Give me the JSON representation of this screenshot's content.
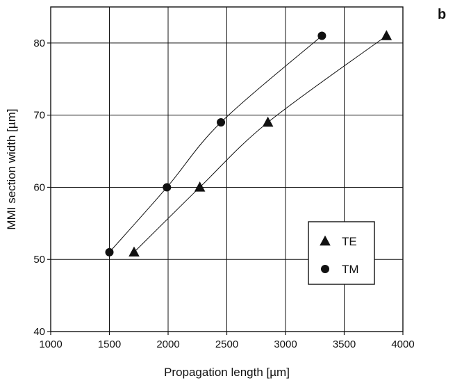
{
  "panel_label": "b",
  "colors": {
    "ink": "#111111",
    "grid": "#111111",
    "background": "#ffffff"
  },
  "chart_data": {
    "type": "scatter",
    "title": "",
    "xlabel": "Propagation length [µm]",
    "ylabel": "MMI section width [µm]",
    "xlim": [
      1000,
      4000
    ],
    "ylim": [
      40,
      85
    ],
    "x_ticks": [
      1000,
      1500,
      2000,
      2500,
      3000,
      3500,
      4000
    ],
    "y_ticks": [
      40,
      50,
      60,
      70,
      80
    ],
    "grid": true,
    "legend_position": "lower-right",
    "series": [
      {
        "name": "TE",
        "marker": "triangle",
        "points": [
          {
            "x": 1710,
            "y": 51
          },
          {
            "x": 2270,
            "y": 60
          },
          {
            "x": 2850,
            "y": 69
          },
          {
            "x": 3860,
            "y": 81
          }
        ]
      },
      {
        "name": "TM",
        "marker": "circle",
        "points": [
          {
            "x": 1500,
            "y": 51
          },
          {
            "x": 1990,
            "y": 60
          },
          {
            "x": 2450,
            "y": 69
          },
          {
            "x": 3310,
            "y": 81
          }
        ]
      }
    ]
  }
}
